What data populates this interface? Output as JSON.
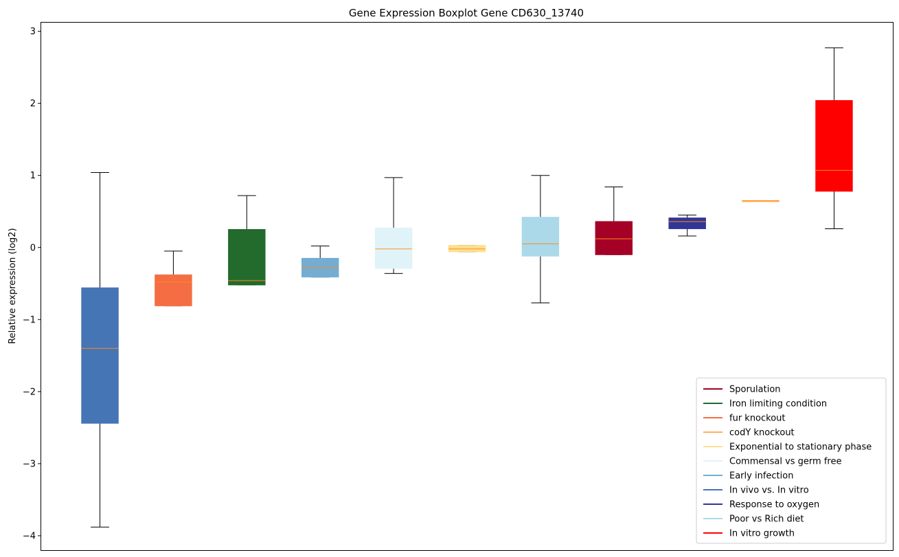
{
  "chart_data": {
    "type": "boxplot",
    "title": "Gene Expression Boxplot Gene CD630_13740",
    "ylabel": "Relative expression (log2)",
    "xlabel": "",
    "ylim": [
      -4.2,
      3.12
    ],
    "yticks": [
      {
        "value": 3,
        "label": "3"
      },
      {
        "value": 2,
        "label": "2"
      },
      {
        "value": 1,
        "label": "1"
      },
      {
        "value": 0,
        "label": "0"
      },
      {
        "value": -1,
        "label": "−1"
      },
      {
        "value": -2,
        "label": "−2"
      },
      {
        "value": -3,
        "label": "−3"
      },
      {
        "value": -4,
        "label": "−4"
      }
    ],
    "grid": false,
    "legend_position": "lower-right",
    "median_color": "#ff8c1a",
    "boxes": [
      {
        "color": "#4575b4",
        "whislo": -3.88,
        "q1": -2.44,
        "med": -1.4,
        "q3": -0.56,
        "whishi": 1.04
      },
      {
        "color": "#f46d43",
        "whislo": -0.81,
        "q1": -0.81,
        "med": -0.48,
        "q3": -0.38,
        "whishi": -0.05
      },
      {
        "color": "#226b2c",
        "whislo": -0.52,
        "q1": -0.52,
        "med": -0.46,
        "q3": 0.25,
        "whishi": 0.72
      },
      {
        "color": "#74add1",
        "whislo": -0.41,
        "q1": -0.41,
        "med": -0.28,
        "q3": -0.15,
        "whishi": 0.02
      },
      {
        "color": "#e0f3f8",
        "whislo": -0.36,
        "q1": -0.29,
        "med": -0.02,
        "q3": 0.27,
        "whishi": 0.97
      },
      {
        "color": "#fee090",
        "whislo": -0.06,
        "q1": -0.06,
        "med": -0.02,
        "q3": 0.03,
        "whishi": 0.03
      },
      {
        "color": "#abd9e9",
        "whislo": -0.77,
        "q1": -0.12,
        "med": 0.05,
        "q3": 0.42,
        "whishi": 1.0
      },
      {
        "color": "#a50026",
        "whislo": -0.1,
        "q1": -0.1,
        "med": 0.12,
        "q3": 0.36,
        "whishi": 0.84
      },
      {
        "color": "#313695",
        "whislo": 0.16,
        "q1": 0.26,
        "med": 0.36,
        "q3": 0.41,
        "whishi": 0.45
      },
      {
        "color": "#fdae61",
        "whislo": 0.64,
        "q1": 0.64,
        "med": 0.65,
        "q3": 0.65,
        "whishi": 0.65
      },
      {
        "color": "#ff0000",
        "whislo": 0.26,
        "q1": 0.78,
        "med": 1.07,
        "q3": 2.04,
        "whishi": 2.77
      }
    ],
    "legend": [
      {
        "label": "Sporulation",
        "color": "#a50026"
      },
      {
        "label": "Iron limiting condition",
        "color": "#226b2c"
      },
      {
        "label": "fur knockout",
        "color": "#f46d43"
      },
      {
        "label": "codY knockout",
        "color": "#fdae61"
      },
      {
        "label": "Exponential to stationary phase",
        "color": "#fee090"
      },
      {
        "label": "Commensal vs germ free",
        "color": "#e0f3f8"
      },
      {
        "label": "Early infection",
        "color": "#74add1"
      },
      {
        "label": "In vivo vs. In vitro",
        "color": "#4575b4"
      },
      {
        "label": "Response to oxygen",
        "color": "#313695"
      },
      {
        "label": "Poor vs Rich diet",
        "color": "#abd9e9"
      },
      {
        "label": "In vitro growth",
        "color": "#ff0000"
      }
    ]
  }
}
